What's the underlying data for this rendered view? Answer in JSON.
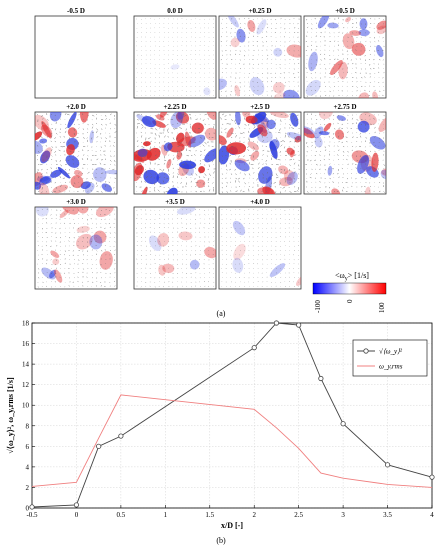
{
  "panels": [
    {
      "label": "-0.5 D",
      "intensity": 0.0
    },
    {
      "label": "0.0 D",
      "intensity": 0.04
    },
    {
      "label": "+0.25 D",
      "intensity": 0.35
    },
    {
      "label": "+0.5 D",
      "intensity": 0.45
    },
    {
      "label": "+2.0 D",
      "intensity": 0.85
    },
    {
      "label": "+2.25 D",
      "intensity": 1.0
    },
    {
      "label": "+2.5 D",
      "intensity": 0.95
    },
    {
      "label": "+2.75 D",
      "intensity": 0.6
    },
    {
      "label": "+3.0 D",
      "intensity": 0.4
    },
    {
      "label": "+3.5 D",
      "intensity": 0.2
    },
    {
      "label": "+4.0 D",
      "intensity": 0.12
    }
  ],
  "colorbar": {
    "title": "<ω",
    "subscript": "y",
    "title_suffix": "> [1/s]",
    "ticks": [
      "-100",
      "0",
      "100"
    ],
    "colors": {
      "negative": "#0000ff",
      "zero": "#ffffff",
      "positive": "#ff0000"
    }
  },
  "subfigure_labels": {
    "a": "(a)",
    "b": "(b)"
  },
  "chart_data": {
    "type": "line",
    "xlabel": "x/D [-]",
    "ylabel": "√⟨ω_y⟩², ω_y,rms [1/s]",
    "xlim": [
      -0.5,
      4
    ],
    "ylim": [
      0,
      18
    ],
    "xticks": [
      "-0.5",
      "0",
      "0.5",
      "1",
      "1.5",
      "2",
      "2.5",
      "3",
      "3.5",
      "4"
    ],
    "yticks": [
      "0",
      "2",
      "4",
      "6",
      "8",
      "10",
      "12",
      "14",
      "16",
      "18"
    ],
    "grid": true,
    "legend_position": "top-right",
    "series": [
      {
        "name": "√⟨ω_y⟩²",
        "color": "#444444",
        "marker": "circle",
        "x": [
          -0.5,
          0,
          0.25,
          0.5,
          2,
          2.25,
          2.5,
          2.75,
          3,
          3.5,
          4
        ],
        "y": [
          0.1,
          0.3,
          6.0,
          7.0,
          15.6,
          18.0,
          17.8,
          12.6,
          8.2,
          4.2,
          3.0
        ]
      },
      {
        "name": "ω_y,rms",
        "color": "#f08080",
        "marker": "none",
        "x": [
          -0.5,
          0,
          0.25,
          0.5,
          2,
          2.25,
          2.5,
          2.75,
          3,
          3.5,
          4
        ],
        "y": [
          2.1,
          2.5,
          6.8,
          11.0,
          9.6,
          7.8,
          5.8,
          3.4,
          2.9,
          2.3,
          2.0
        ]
      }
    ]
  }
}
